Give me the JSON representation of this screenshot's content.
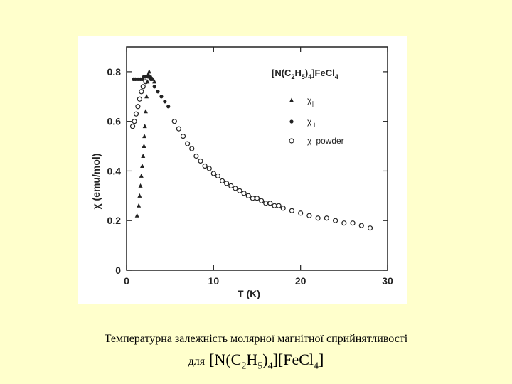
{
  "chart_data": {
    "type": "scatter",
    "title": "[N(C2H5)4][FeCl4]",
    "title_parts": {
      "p1": "[N(C",
      "s1": "2",
      "p2": "H",
      "s2": "5",
      "p3": ")",
      "s3": "4",
      "p4": "]FeCl",
      "s4": "4"
    },
    "xlabel": "T (K)",
    "ylabel": "χ (emu/mol)",
    "xlim": [
      0,
      30
    ],
    "ylim": [
      0,
      0.9
    ],
    "xticks": [
      "0",
      "10",
      "20",
      "30"
    ],
    "xtick_values": [
      0,
      10,
      20,
      30
    ],
    "yticks": [
      "0",
      "0.2",
      "0.4",
      "0.6",
      "0.8"
    ],
    "ytick_values": [
      0,
      0.2,
      0.4,
      0.6,
      0.8
    ],
    "grid": false,
    "legend_position": "top-right",
    "series": [
      {
        "name": "χ∥",
        "legend_symbol": "χ",
        "legend_sub": "∥",
        "marker": "triangle",
        "points": [
          [
            1.2,
            0.22
          ],
          [
            1.4,
            0.26
          ],
          [
            1.5,
            0.3
          ],
          [
            1.6,
            0.34
          ],
          [
            1.7,
            0.38
          ],
          [
            1.8,
            0.42
          ],
          [
            1.9,
            0.46
          ],
          [
            2.0,
            0.5
          ],
          [
            2.05,
            0.54
          ],
          [
            2.1,
            0.58
          ],
          [
            2.2,
            0.64
          ],
          [
            2.3,
            0.7
          ],
          [
            2.4,
            0.76
          ],
          [
            2.5,
            0.79
          ],
          [
            2.6,
            0.8
          ],
          [
            2.8,
            0.78
          ],
          [
            3.0,
            0.77
          ],
          [
            3.2,
            0.76
          ]
        ]
      },
      {
        "name": "χ⊥",
        "legend_symbol": "χ",
        "legend_sub": "⊥",
        "marker": "filled-circle",
        "points": [
          [
            0.8,
            0.77
          ],
          [
            1.0,
            0.77
          ],
          [
            1.2,
            0.77
          ],
          [
            1.4,
            0.77
          ],
          [
            1.6,
            0.77
          ],
          [
            1.8,
            0.77
          ],
          [
            2.0,
            0.78
          ],
          [
            2.2,
            0.78
          ],
          [
            2.5,
            0.78
          ],
          [
            2.8,
            0.77
          ],
          [
            3.2,
            0.74
          ],
          [
            3.6,
            0.72
          ],
          [
            4.0,
            0.7
          ],
          [
            4.4,
            0.68
          ],
          [
            4.8,
            0.66
          ]
        ]
      },
      {
        "name": "χ powder",
        "legend_symbol": "χ",
        "legend_text": "powder",
        "marker": "open-circle",
        "points": [
          [
            0.7,
            0.58
          ],
          [
            0.9,
            0.6
          ],
          [
            1.1,
            0.63
          ],
          [
            1.3,
            0.66
          ],
          [
            1.5,
            0.69
          ],
          [
            1.7,
            0.72
          ],
          [
            1.9,
            0.74
          ],
          [
            2.2,
            0.76
          ],
          [
            5.5,
            0.6
          ],
          [
            6.0,
            0.57
          ],
          [
            6.5,
            0.54
          ],
          [
            7.0,
            0.51
          ],
          [
            7.5,
            0.49
          ],
          [
            8.0,
            0.46
          ],
          [
            8.5,
            0.44
          ],
          [
            9.0,
            0.42
          ],
          [
            9.5,
            0.41
          ],
          [
            10.0,
            0.39
          ],
          [
            10.5,
            0.38
          ],
          [
            11.0,
            0.36
          ],
          [
            11.5,
            0.35
          ],
          [
            12.0,
            0.34
          ],
          [
            12.5,
            0.33
          ],
          [
            13.0,
            0.32
          ],
          [
            13.5,
            0.31
          ],
          [
            14.0,
            0.3
          ],
          [
            14.5,
            0.29
          ],
          [
            15.0,
            0.29
          ],
          [
            15.5,
            0.28
          ],
          [
            16.0,
            0.27
          ],
          [
            16.5,
            0.27
          ],
          [
            17.0,
            0.26
          ],
          [
            17.5,
            0.26
          ],
          [
            18.0,
            0.25
          ],
          [
            19.0,
            0.24
          ],
          [
            20.0,
            0.23
          ],
          [
            21.0,
            0.22
          ],
          [
            22.0,
            0.21
          ],
          [
            23.0,
            0.21
          ],
          [
            24.0,
            0.2
          ],
          [
            25.0,
            0.19
          ],
          [
            26.0,
            0.19
          ],
          [
            27.0,
            0.18
          ],
          [
            28.0,
            0.17
          ]
        ]
      }
    ]
  },
  "caption": {
    "line1": "Температурна залежність молярної магнітної сприйнятливості",
    "line2_prefix": "для",
    "formula": {
      "p1": "[N(C",
      "s1": "2",
      "p2": "H",
      "s2": "5",
      "p3": ")",
      "s3": "4",
      "p4": "][FeCl",
      "s4": "4",
      "p5": "]"
    }
  }
}
